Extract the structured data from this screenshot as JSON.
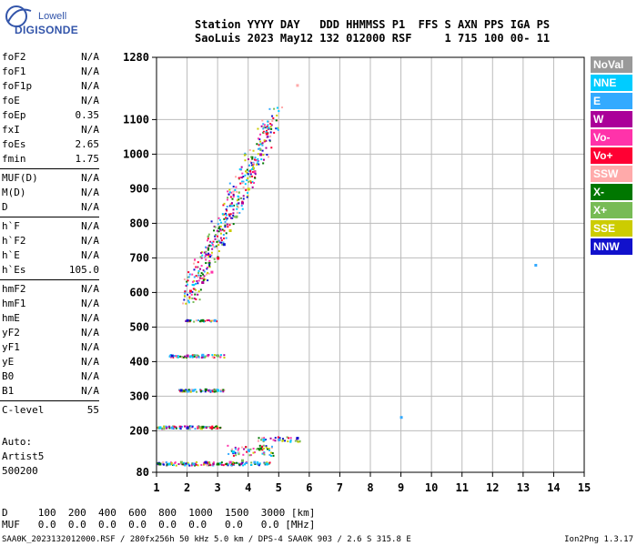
{
  "logo": {
    "line1": "Lowell",
    "line2": "DIGISONDE"
  },
  "header": {
    "line1": "Station YYYY DAY   DDD HHMMSS P1  FFS S AXN PPS IGA PS",
    "line2": "SaoLuis 2023 May12 132 012000 RSF     1 715 100 00- 11"
  },
  "params": [
    {
      "name": "foF2",
      "value": "N/A"
    },
    {
      "name": "foF1",
      "value": "N/A"
    },
    {
      "name": "foF1p",
      "value": "N/A"
    },
    {
      "name": "foE",
      "value": "N/A"
    },
    {
      "name": "foEp",
      "value": "0.35"
    },
    {
      "name": "fxI",
      "value": "N/A"
    },
    {
      "name": "foEs",
      "value": "2.65"
    },
    {
      "name": "fmin",
      "value": "1.75"
    },
    {
      "name": "MUF(D)",
      "value": "N/A"
    },
    {
      "name": "M(D)",
      "value": "N/A"
    },
    {
      "name": "D",
      "value": "N/A"
    },
    {
      "name": "h`F",
      "value": "N/A"
    },
    {
      "name": "h`F2",
      "value": "N/A"
    },
    {
      "name": "h`E",
      "value": "N/A"
    },
    {
      "name": "h`Es",
      "value": "105.0"
    },
    {
      "name": "hmF2",
      "value": "N/A"
    },
    {
      "name": "hmF1",
      "value": "N/A"
    },
    {
      "name": "hmE",
      "value": "N/A"
    },
    {
      "name": "yF2",
      "value": "N/A"
    },
    {
      "name": "yF1",
      "value": "N/A"
    },
    {
      "name": "yE",
      "value": "N/A"
    },
    {
      "name": "B0",
      "value": "N/A"
    },
    {
      "name": "B1",
      "value": "N/A"
    },
    {
      "name": "C-level",
      "value": "55"
    }
  ],
  "auto": {
    "label": "Auto:",
    "artist": "Artist5",
    "code": "500200"
  },
  "legend": [
    {
      "label": "NoVal",
      "color": "#999999"
    },
    {
      "label": "NNE",
      "color": "#00ccff"
    },
    {
      "label": "E",
      "color": "#33aaff"
    },
    {
      "label": "W",
      "color": "#aa0099"
    },
    {
      "label": "Vo-",
      "color": "#ff33aa"
    },
    {
      "label": "Vo+",
      "color": "#ff0033"
    },
    {
      "label": "SSW",
      "color": "#ffaaaa"
    },
    {
      "label": "X-",
      "color": "#007700"
    },
    {
      "label": "X+",
      "color": "#77bb55"
    },
    {
      "label": "SSE",
      "color": "#cccc00"
    },
    {
      "label": "NNW",
      "color": "#1111cc"
    }
  ],
  "dmuf": {
    "line1": "D     100  200  400  600  800  1000  1500  3000 [km]",
    "line2": "MUF   0.0  0.0  0.0  0.0  0.0  0.0   0.0   0.0 [MHz]"
  },
  "footer": {
    "left": "SAA0K_2023132012000.RSF / 280fx256h 50 kHz 5.0 km / DPS-4 SAA0K 903 / 2.6 S 315.8 E",
    "right": "Ion2Png 1.3.17"
  },
  "chart_data": {
    "type": "scatter",
    "title": "",
    "xlabel": "",
    "ylabel": "",
    "xlim": [
      1,
      15
    ],
    "ylim": [
      80,
      1280
    ],
    "x_ticks": [
      1,
      2,
      3,
      4,
      5,
      6,
      7,
      8,
      9,
      10,
      11,
      12,
      13,
      14,
      15
    ],
    "y_ticks": [
      80,
      200,
      300,
      400,
      500,
      600,
      700,
      800,
      900,
      1000,
      1100,
      1280
    ],
    "grid": true,
    "points": [
      {
        "x": 1.1,
        "y": 105,
        "c": "X-"
      },
      {
        "x": 1.4,
        "y": 105,
        "c": "NNE"
      },
      {
        "x": 1.8,
        "y": 110,
        "c": "X+"
      },
      {
        "x": 2.2,
        "y": 105,
        "c": "E"
      },
      {
        "x": 2.6,
        "y": 110,
        "c": "NNW"
      },
      {
        "x": 3.0,
        "y": 105,
        "c": "X-"
      },
      {
        "x": 3.4,
        "y": 110,
        "c": "Vo-"
      },
      {
        "x": 3.8,
        "y": 115,
        "c": "X+"
      },
      {
        "x": 4.2,
        "y": 110,
        "c": "E"
      },
      {
        "x": 4.6,
        "y": 105,
        "c": "NNE"
      },
      {
        "x": 3.5,
        "y": 140,
        "c": "NNE"
      },
      {
        "x": 4.0,
        "y": 145,
        "c": "E"
      },
      {
        "x": 4.4,
        "y": 150,
        "c": "X-"
      },
      {
        "x": 4.5,
        "y": 175,
        "c": "NNE"
      },
      {
        "x": 5.0,
        "y": 175,
        "c": "E"
      },
      {
        "x": 5.6,
        "y": 180,
        "c": "NNW"
      },
      {
        "x": 1.1,
        "y": 210,
        "c": "NNE"
      },
      {
        "x": 1.5,
        "y": 210,
        "c": "E"
      },
      {
        "x": 2.0,
        "y": 210,
        "c": "NNW"
      },
      {
        "x": 2.5,
        "y": 212,
        "c": "X-"
      },
      {
        "x": 2.8,
        "y": 210,
        "c": "Vo+"
      },
      {
        "x": 1.8,
        "y": 318,
        "c": "NNW"
      },
      {
        "x": 2.2,
        "y": 318,
        "c": "E"
      },
      {
        "x": 2.6,
        "y": 320,
        "c": "X-"
      },
      {
        "x": 3.0,
        "y": 318,
        "c": "NNE"
      },
      {
        "x": 1.5,
        "y": 418,
        "c": "NNW"
      },
      {
        "x": 2.0,
        "y": 418,
        "c": "W"
      },
      {
        "x": 2.5,
        "y": 420,
        "c": "E"
      },
      {
        "x": 3.0,
        "y": 418,
        "c": "X+"
      },
      {
        "x": 2.0,
        "y": 520,
        "c": "NNW"
      },
      {
        "x": 2.5,
        "y": 520,
        "c": "X-"
      },
      {
        "x": 2.9,
        "y": 520,
        "c": "E"
      },
      {
        "x": 2.1,
        "y": 605,
        "c": "Vo+"
      },
      {
        "x": 2.5,
        "y": 630,
        "c": "W"
      },
      {
        "x": 2.8,
        "y": 660,
        "c": "Vo-"
      },
      {
        "x": 3.0,
        "y": 700,
        "c": "Vo+"
      },
      {
        "x": 3.2,
        "y": 740,
        "c": "NNW"
      },
      {
        "x": 3.4,
        "y": 780,
        "c": "SSE"
      },
      {
        "x": 3.6,
        "y": 820,
        "c": "X+"
      },
      {
        "x": 3.8,
        "y": 860,
        "c": "W"
      },
      {
        "x": 4.0,
        "y": 900,
        "c": "SSE"
      },
      {
        "x": 4.2,
        "y": 950,
        "c": "Vo-"
      },
      {
        "x": 4.4,
        "y": 1000,
        "c": "W"
      },
      {
        "x": 4.6,
        "y": 1060,
        "c": "Vo+"
      },
      {
        "x": 5.6,
        "y": 1200,
        "c": "SSW"
      },
      {
        "x": 9.0,
        "y": 240,
        "c": "E"
      },
      {
        "x": 13.4,
        "y": 680,
        "c": "E"
      }
    ]
  }
}
